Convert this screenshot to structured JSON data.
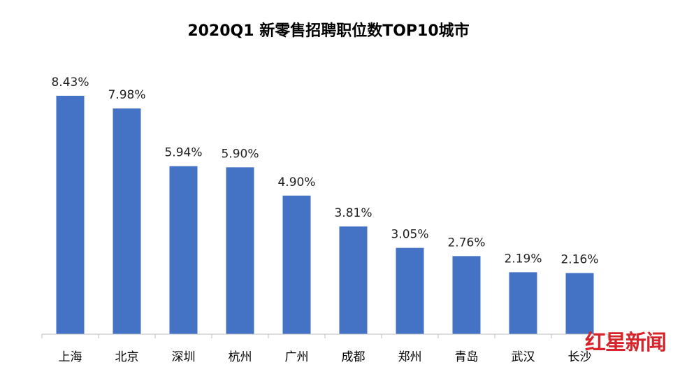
{
  "chart_data": {
    "type": "bar",
    "title": "2020Q1 新零售招聘职位数TOP10城市",
    "categories": [
      "上海",
      "北京",
      "深圳",
      "杭州",
      "广州",
      "成都",
      "郑州",
      "青岛",
      "武汉",
      "长沙"
    ],
    "values": [
      8.43,
      7.98,
      5.94,
      5.9,
      4.9,
      3.81,
      3.05,
      2.76,
      2.19,
      2.16
    ],
    "data_labels": [
      "8.43%",
      "7.98%",
      "5.94%",
      "5.90%",
      "4.90%",
      "3.81%",
      "3.05%",
      "2.76%",
      "2.19%",
      "2.16%"
    ],
    "xlabel": "",
    "ylabel": "",
    "ylim": [
      0,
      9
    ],
    "grid": false,
    "legend": "none",
    "colors": {
      "bar": "#4472C4"
    }
  },
  "watermark": {
    "text": "红星新闻",
    "color": "#d6242a"
  }
}
